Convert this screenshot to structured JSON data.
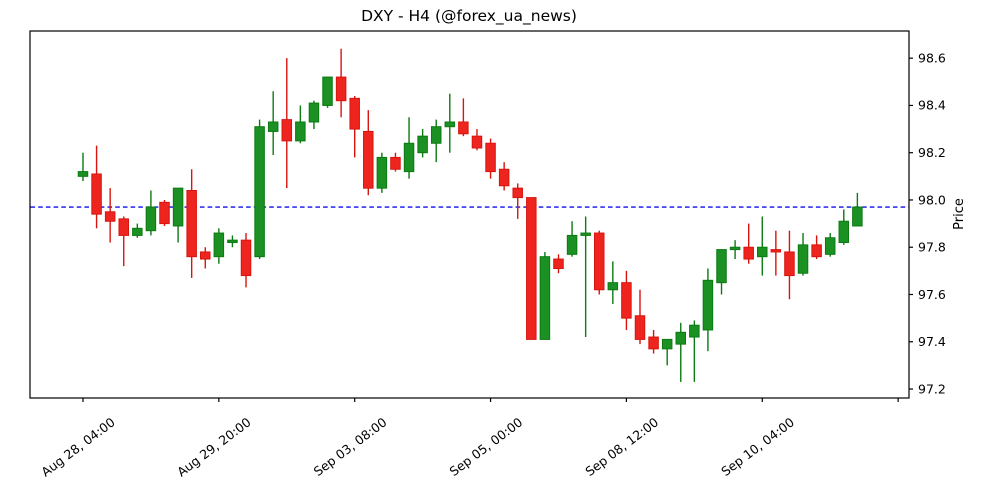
{
  "title": "DXY - H4 (@forex_ua_news)",
  "chart_data": {
    "type": "candlestick",
    "symbol": "DXY",
    "timeframe": "H4",
    "source_handle": "@forex_ua_news",
    "title": "DXY - H4 (@forex_ua_news)",
    "ylabel": "Price",
    "ylabel_side": "right",
    "grid": false,
    "ylim": [
      97.162,
      98.715
    ],
    "y_ticks": [
      97.2,
      97.4,
      97.6,
      97.8,
      98.0,
      98.2,
      98.4,
      98.6
    ],
    "xlim": [
      -3.9,
      60.8
    ],
    "x_tick_indices": [
      0,
      10,
      20,
      30,
      40,
      50,
      60
    ],
    "x_tick_labels": [
      "Aug 28, 04:00",
      "Aug 29, 20:00",
      "Sep 03, 08:00",
      "Sep 05, 00:00",
      "Sep 08, 12:00",
      "Sep 10, 04:00",
      ""
    ],
    "reference_line": {
      "price": 97.97,
      "color": "#0d0dee",
      "style": "dashed"
    },
    "colors": {
      "up_fill": "#1a9122",
      "up_edge": "#0b7a12",
      "down_fill": "#ee251e",
      "down_edge": "#d8140e",
      "axis": "#000000"
    },
    "ohlc": [
      [
        98.1,
        98.2,
        98.08,
        98.12
      ],
      [
        98.11,
        98.23,
        97.88,
        97.94
      ],
      [
        97.95,
        98.05,
        97.82,
        97.91
      ],
      [
        97.92,
        97.93,
        97.72,
        97.85
      ],
      [
        97.85,
        97.9,
        97.84,
        97.88
      ],
      [
        97.87,
        98.04,
        97.85,
        97.97
      ],
      [
        97.99,
        98.0,
        97.89,
        97.9
      ],
      [
        97.89,
        98.05,
        97.82,
        98.05
      ],
      [
        98.04,
        98.13,
        97.67,
        97.76
      ],
      [
        97.78,
        97.8,
        97.71,
        97.75
      ],
      [
        97.76,
        97.88,
        97.73,
        97.86
      ],
      [
        97.82,
        97.85,
        97.8,
        97.83
      ],
      [
        97.83,
        97.86,
        97.63,
        97.68
      ],
      [
        97.76,
        98.34,
        97.75,
        98.31
      ],
      [
        98.29,
        98.46,
        98.19,
        98.33
      ],
      [
        98.34,
        98.6,
        98.05,
        98.25
      ],
      [
        98.25,
        98.4,
        98.24,
        98.33
      ],
      [
        98.33,
        98.42,
        98.3,
        98.41
      ],
      [
        98.4,
        98.52,
        98.39,
        98.52
      ],
      [
        98.52,
        98.64,
        98.35,
        98.42
      ],
      [
        98.43,
        98.44,
        98.18,
        98.3
      ],
      [
        98.29,
        98.38,
        98.02,
        98.05
      ],
      [
        98.05,
        98.2,
        98.03,
        98.18
      ],
      [
        98.18,
        98.2,
        98.12,
        98.13
      ],
      [
        98.12,
        98.35,
        98.09,
        98.24
      ],
      [
        98.2,
        98.3,
        98.18,
        98.27
      ],
      [
        98.24,
        98.34,
        98.16,
        98.31
      ],
      [
        98.31,
        98.45,
        98.2,
        98.33
      ],
      [
        98.33,
        98.43,
        98.27,
        98.28
      ],
      [
        98.27,
        98.3,
        98.21,
        98.22
      ],
      [
        98.24,
        98.26,
        98.09,
        98.12
      ],
      [
        98.13,
        98.16,
        98.04,
        98.06
      ],
      [
        98.05,
        98.07,
        97.92,
        98.01
      ],
      [
        98.01,
        98.01,
        97.41,
        97.41
      ],
      [
        97.41,
        97.78,
        97.41,
        97.76
      ],
      [
        97.75,
        97.77,
        97.69,
        97.71
      ],
      [
        97.77,
        97.91,
        97.76,
        97.85
      ],
      [
        97.85,
        97.93,
        97.42,
        97.86
      ],
      [
        97.86,
        97.87,
        97.6,
        97.62
      ],
      [
        97.62,
        97.74,
        97.56,
        97.65
      ],
      [
        97.65,
        97.7,
        97.45,
        97.5
      ],
      [
        97.51,
        97.62,
        97.39,
        97.41
      ],
      [
        97.42,
        97.45,
        97.35,
        97.37
      ],
      [
        97.37,
        97.41,
        97.3,
        97.41
      ],
      [
        97.39,
        97.48,
        97.23,
        97.44
      ],
      [
        97.42,
        97.49,
        97.23,
        97.47
      ],
      [
        97.45,
        97.71,
        97.36,
        97.66
      ],
      [
        97.65,
        97.79,
        97.6,
        97.79
      ],
      [
        97.79,
        97.83,
        97.75,
        97.8
      ],
      [
        97.8,
        97.9,
        97.73,
        97.75
      ],
      [
        97.76,
        97.93,
        97.68,
        97.8
      ],
      [
        97.79,
        97.87,
        97.68,
        97.78
      ],
      [
        97.78,
        97.87,
        97.58,
        97.68
      ],
      [
        97.69,
        97.86,
        97.68,
        97.81
      ],
      [
        97.81,
        97.85,
        97.75,
        97.76
      ],
      [
        97.77,
        97.86,
        97.76,
        97.84
      ],
      [
        97.82,
        97.96,
        97.81,
        97.91
      ],
      [
        97.89,
        98.03,
        97.89,
        97.97
      ]
    ]
  }
}
